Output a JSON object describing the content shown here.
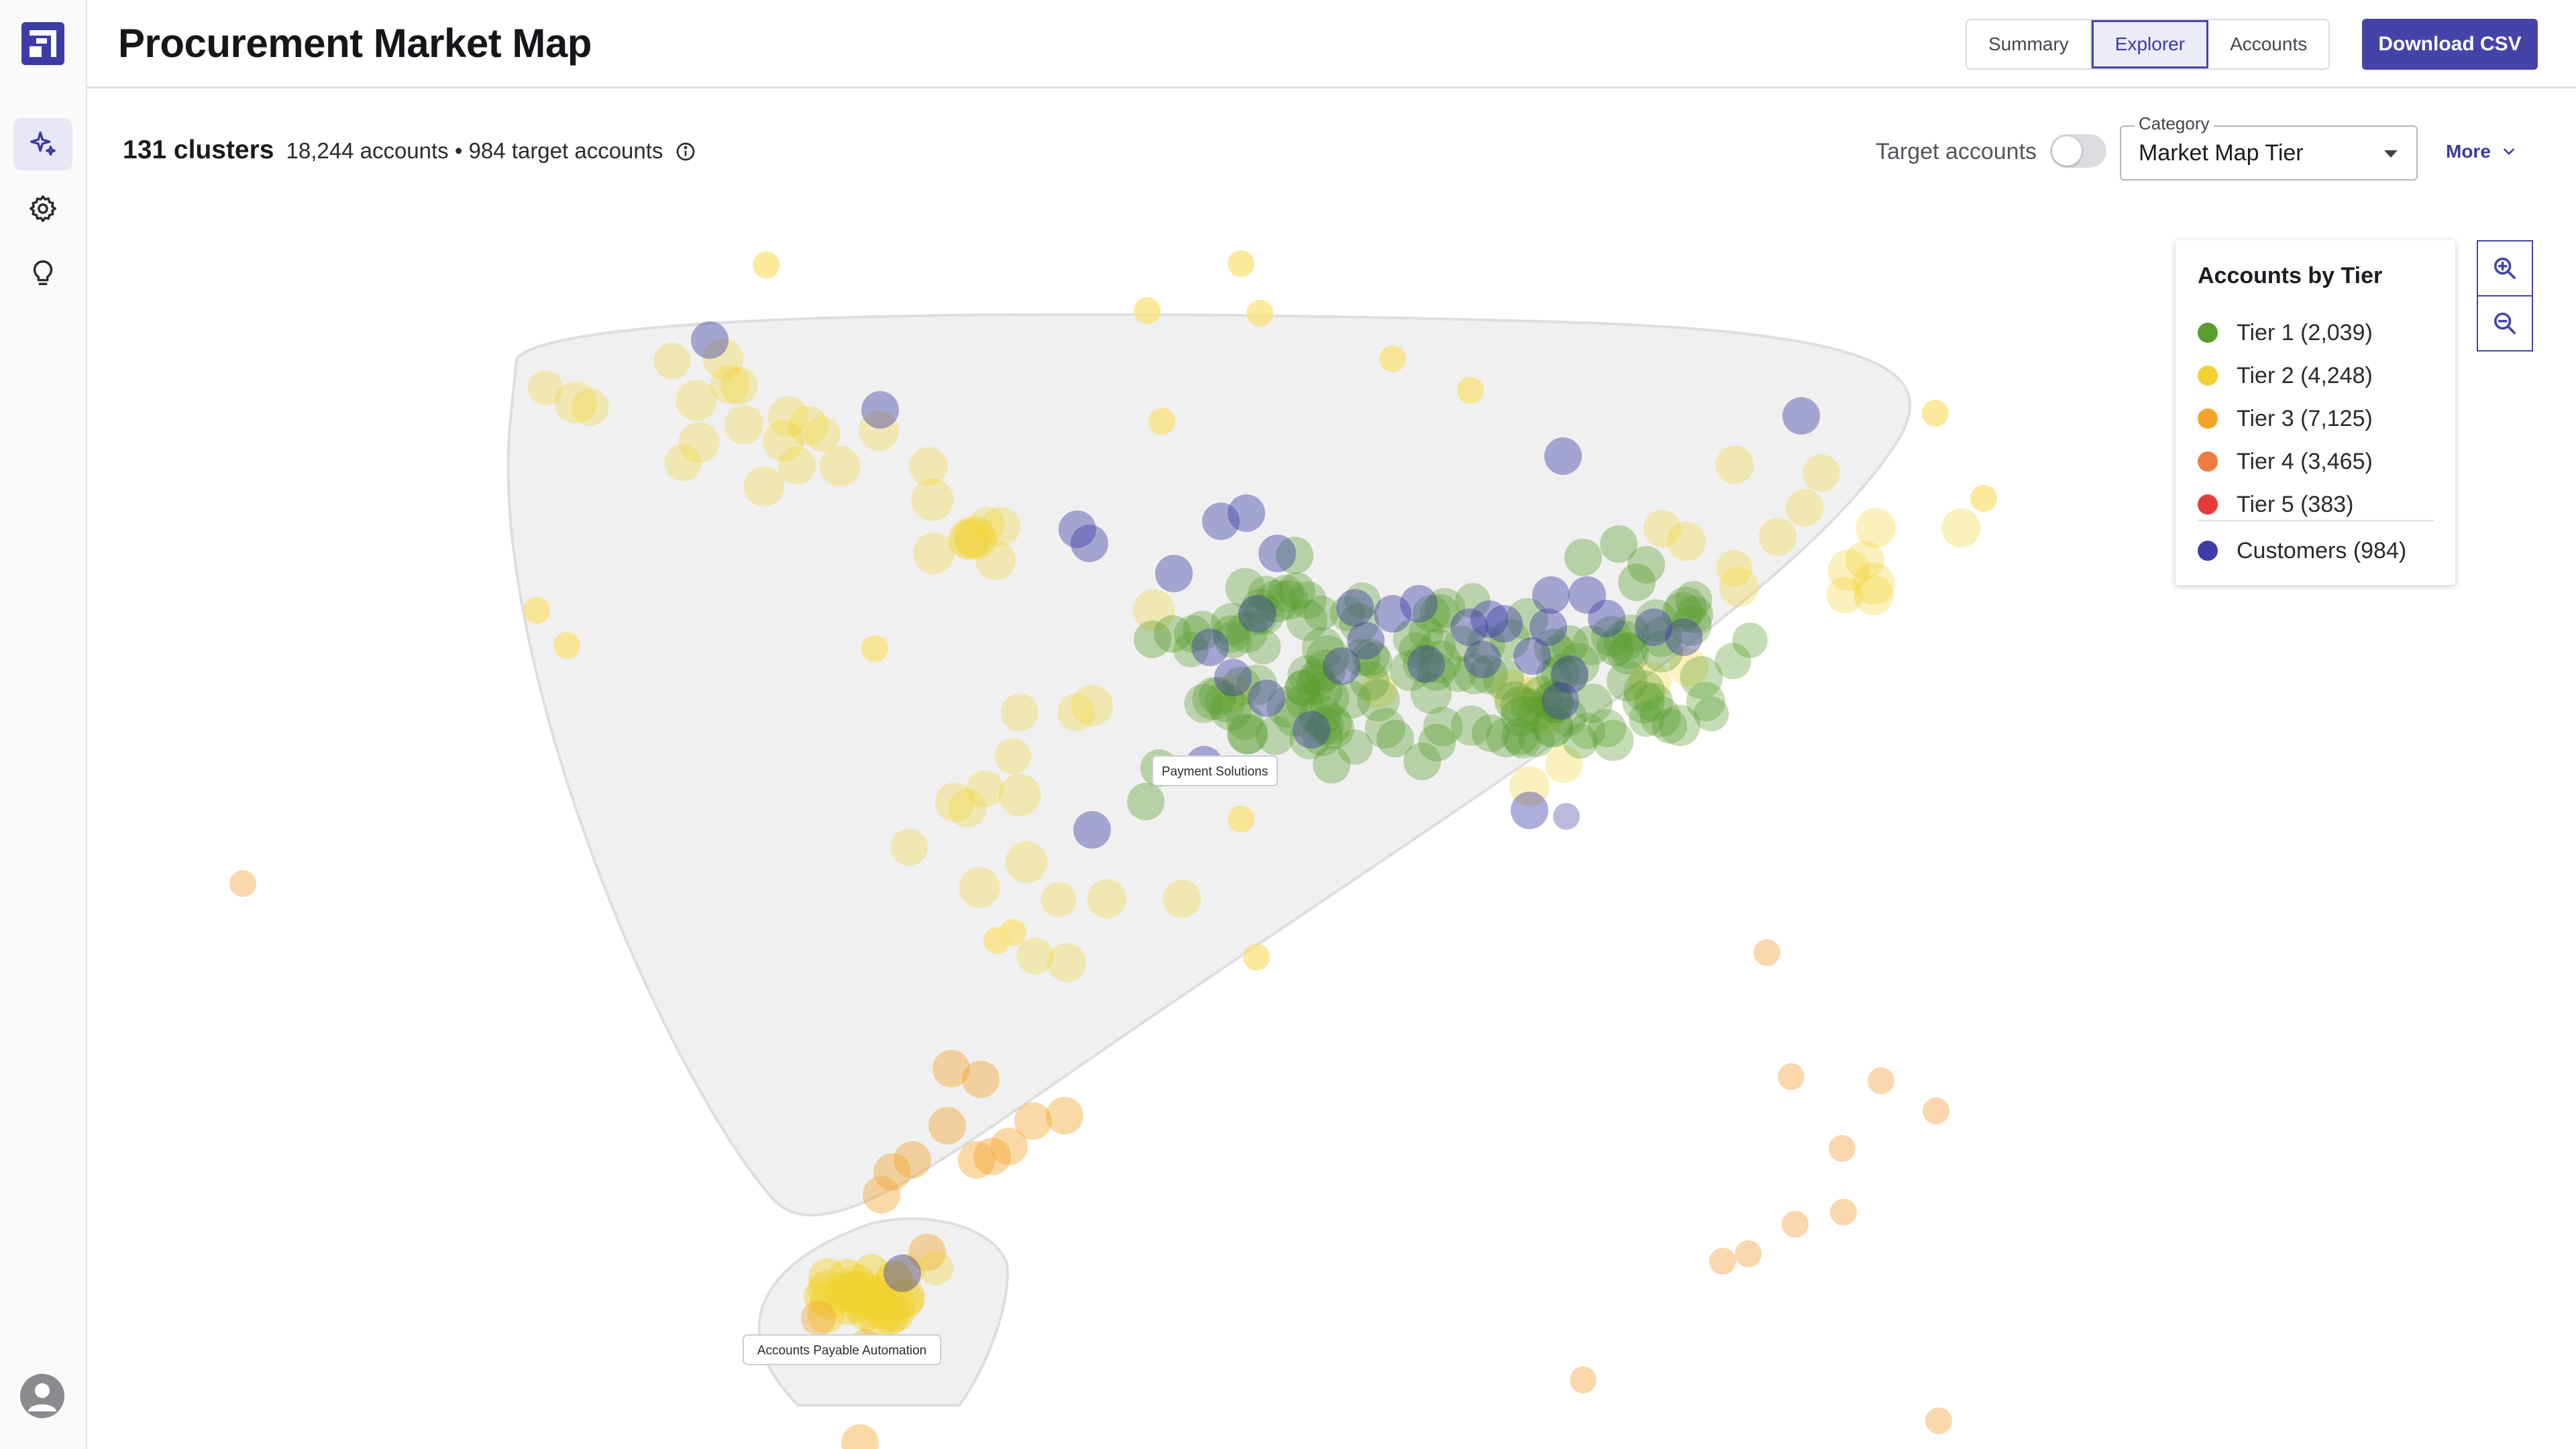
{
  "header": {
    "title": "Procurement Market Map",
    "tabs": [
      {
        "label": "Summary",
        "active": false
      },
      {
        "label": "Explorer",
        "active": true
      },
      {
        "label": "Accounts",
        "active": false
      }
    ],
    "download_label": "Download CSV"
  },
  "sidebar": {
    "items": [
      {
        "icon": "sparkle-icon",
        "active": true
      },
      {
        "icon": "gear-icon",
        "active": false
      },
      {
        "icon": "lightbulb-icon",
        "active": false
      }
    ],
    "user_icon": "user-avatar-icon"
  },
  "toolbar": {
    "clusters": "131 clusters",
    "stats": "18,244 accounts • 984 target accounts",
    "target_toggle_label": "Target accounts",
    "target_toggle_on": false,
    "category_label": "Category",
    "category_value": "Market Map Tier",
    "more_label": "More"
  },
  "legend": {
    "title": "Accounts by Tier",
    "items": [
      {
        "label": "Tier 1 (2,039)",
        "color": "#5a9e2f"
      },
      {
        "label": "Tier 2 (4,248)",
        "color": "#f2d230"
      },
      {
        "label": "Tier 3 (7,125)",
        "color": "#f2a42a"
      },
      {
        "label": "Tier 4 (3,465)",
        "color": "#ef7c3f"
      },
      {
        "label": "Tier 5 (383)",
        "color": "#e43c3c"
      },
      {
        "label": "Customers (984)",
        "color": "#3c3ca6"
      }
    ]
  },
  "map": {
    "cluster_labels": [
      "Payment Solutions",
      "Accounts Payable Automation"
    ]
  },
  "colors": {
    "accent": "#4444a8",
    "tier1": "#5a9e2f",
    "tier2": "#f2d230",
    "tier3": "#f2a42a",
    "customer": "#3c3ca6"
  }
}
